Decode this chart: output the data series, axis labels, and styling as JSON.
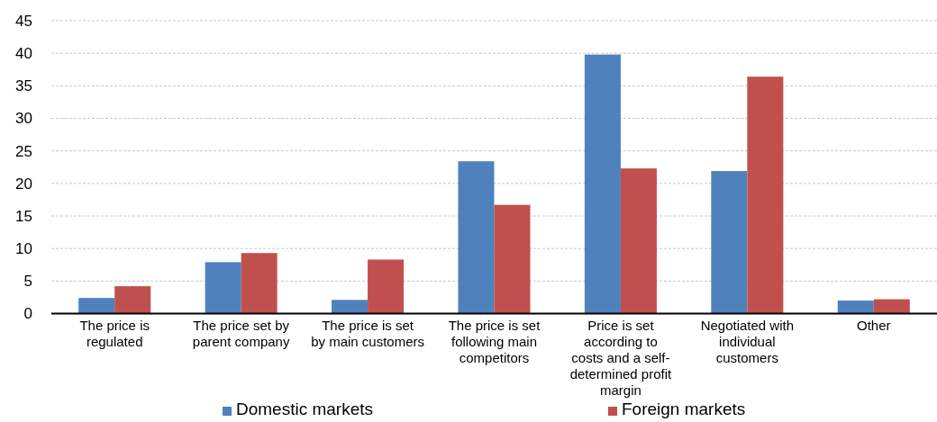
{
  "chart_data": {
    "type": "bar",
    "categories": [
      "The price is regulated",
      "The price set by parent company",
      "The price is set by main customers",
      "The price is set following main competitors",
      "Price is set according to costs and a self-determined profit margin",
      "Negotiated with individual customers",
      "Other"
    ],
    "series": [
      {
        "name": "Domestic markets",
        "color": "#4f81bd",
        "values": [
          2.4,
          7.9,
          2.1,
          23.4,
          39.8,
          21.9,
          2.0
        ]
      },
      {
        "name": "Foreign markets",
        "color": "#c0504d",
        "values": [
          4.2,
          9.3,
          8.3,
          16.7,
          22.3,
          36.4,
          2.2
        ]
      }
    ],
    "ylim": [
      0,
      45
    ],
    "yticks": [
      0,
      5,
      10,
      15,
      20,
      25,
      30,
      35,
      40,
      45
    ],
    "grid": "y",
    "legend": "bottom"
  }
}
